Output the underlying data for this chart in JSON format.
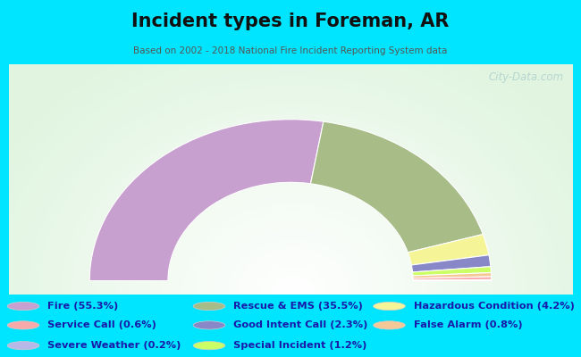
{
  "title": "Incident types in Foreman, AR",
  "subtitle": "Based on 2002 - 2018 National Fire Incident Reporting System data",
  "background_cyan": "#00e5ff",
  "background_chart": "#e8f5e2",
  "watermark": "City-Data.com",
  "segments": [
    {
      "label": "Fire",
      "pct": 55.3,
      "color": "#c8a0d0"
    },
    {
      "label": "Rescue & EMS",
      "pct": 35.5,
      "color": "#a8bc88"
    },
    {
      "label": "Hazardous Condition",
      "pct": 4.2,
      "color": "#f5f598"
    },
    {
      "label": "Good Intent Call",
      "pct": 2.3,
      "color": "#8888c8"
    },
    {
      "label": "Special Incident",
      "pct": 1.2,
      "color": "#ccff66"
    },
    {
      "label": "False Alarm",
      "pct": 0.8,
      "color": "#f5c898"
    },
    {
      "label": "Service Call",
      "pct": 0.6,
      "color": "#f8aaaa"
    },
    {
      "label": "Severe Weather",
      "pct": 0.2,
      "color": "#b8b8e8"
    }
  ],
  "legend_items_col1": [
    {
      "label": "Fire (55.3%)",
      "color": "#c8a0d0"
    },
    {
      "label": "Service Call (0.6%)",
      "color": "#f8aaaa"
    },
    {
      "label": "Severe Weather (0.2%)",
      "color": "#b8b8e8"
    }
  ],
  "legend_items_col2": [
    {
      "label": "Rescue & EMS (35.5%)",
      "color": "#a8bc88"
    },
    {
      "label": "Good Intent Call (2.3%)",
      "color": "#8888c8"
    },
    {
      "label": "Special Incident (1.2%)",
      "color": "#ccff66"
    }
  ],
  "legend_items_col3": [
    {
      "label": "Hazardous Condition (4.2%)",
      "color": "#f5f598"
    },
    {
      "label": "False Alarm (0.8%)",
      "color": "#f5c898"
    }
  ],
  "title_color": "#111111",
  "subtitle_color": "#555555",
  "legend_text_color": "#1a1aaa",
  "figsize": [
    6.5,
    4.0
  ],
  "dpi": 100
}
